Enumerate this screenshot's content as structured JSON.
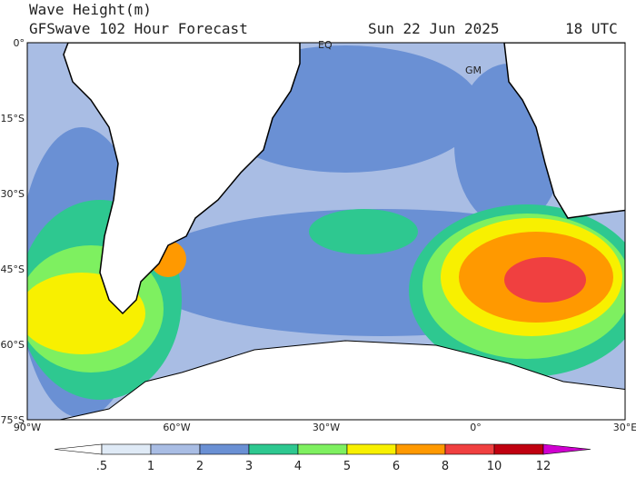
{
  "header": {
    "title": "Wave Height(m)",
    "subtitle": "GFSwave 102 Hour Forecast",
    "date": "Sun 22 Jun 2025",
    "time": "18 UTC"
  },
  "map": {
    "y_labels": [
      "0°",
      "15°S",
      "30°S",
      "45°S",
      "60°S",
      "75°S"
    ],
    "x_labels": [
      "90°W",
      "60°W",
      "30°W",
      "0°",
      "30°E"
    ],
    "place_labels": [
      "EQ",
      "GM"
    ]
  },
  "colorbar": {
    "labels": [
      ".5",
      "1",
      "2",
      "3",
      "4",
      "5",
      "6",
      "8",
      "10",
      "12"
    ],
    "colors": [
      "#ffffff",
      "#dfeaf6",
      "#a9bde4",
      "#6a90d4",
      "#2ec890",
      "#7ef060",
      "#f8f000",
      "#ff9900",
      "#f04040",
      "#c00010",
      "#d000d0"
    ]
  }
}
